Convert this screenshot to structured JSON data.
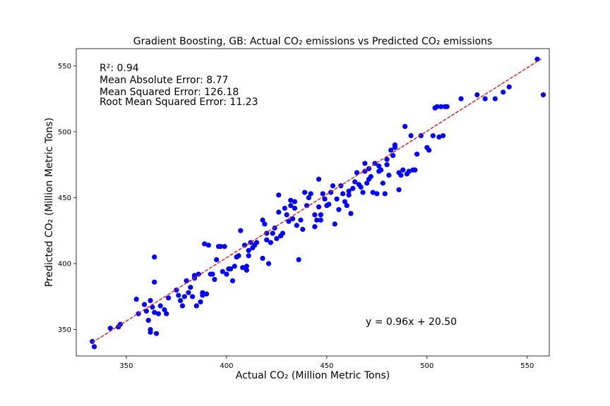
{
  "chart_data": {
    "type": "scatter",
    "title": "Gradient Boosting, GB: Actual CO₂ emissions vs Predicted CO₂ emissions",
    "xlabel": "Actual CO₂ (Million Metric Tons)",
    "ylabel": "Predicted CO₂ (Million Metric Tons)",
    "xlim": [
      325,
      561
    ],
    "ylim": [
      330,
      563
    ],
    "x_ticks": [
      350,
      400,
      450,
      500,
      550
    ],
    "y_ticks": [
      350,
      400,
      450,
      500,
      550
    ],
    "grid": false,
    "metrics": [
      "R²: 0.94",
      "Mean Absolute Error: 8.77",
      "Mean Squared Error: 126.18",
      "Root Mean Squared Error: 11.23"
    ],
    "fit_equation": "y = 0.96x + 20.50",
    "fit_line": {
      "slope": 0.96,
      "intercept": 20.5,
      "x_range": [
        333,
        557
      ],
      "color": "#d62728"
    },
    "point_color": "#0000ff",
    "series": [
      {
        "points": [
          [
            333,
            341
          ],
          [
            334,
            337
          ],
          [
            342,
            351
          ],
          [
            346,
            352
          ],
          [
            347,
            354
          ],
          [
            355,
            373
          ],
          [
            356,
            362
          ],
          [
            359,
            369
          ],
          [
            360,
            364
          ],
          [
            361,
            357
          ],
          [
            362,
            372
          ],
          [
            362,
            348
          ],
          [
            362,
            350
          ],
          [
            363,
            367
          ],
          [
            364,
            363
          ],
          [
            364,
            405
          ],
          [
            364,
            386
          ],
          [
            365,
            347
          ],
          [
            366,
            362
          ],
          [
            367,
            368
          ],
          [
            369,
            365
          ],
          [
            370,
            362
          ],
          [
            371,
            374
          ],
          [
            375,
            380
          ],
          [
            376,
            376
          ],
          [
            377,
            372
          ],
          [
            378,
            368
          ],
          [
            379,
            375
          ],
          [
            380,
            387
          ],
          [
            381,
            378
          ],
          [
            382,
            382
          ],
          [
            383,
            375
          ],
          [
            384,
            389
          ],
          [
            384,
            391
          ],
          [
            385,
            368
          ],
          [
            386,
            392
          ],
          [
            387,
            371
          ],
          [
            388,
            376
          ],
          [
            388,
            378
          ],
          [
            389,
            415
          ],
          [
            390,
            377
          ],
          [
            391,
            414
          ],
          [
            392,
            392
          ],
          [
            393,
            392
          ],
          [
            394,
            388
          ],
          [
            395,
            403
          ],
          [
            396,
            413
          ],
          [
            397,
            413
          ],
          [
            398,
            394
          ],
          [
            399,
            413
          ],
          [
            400,
            392
          ],
          [
            401,
            396
          ],
          [
            402,
            396
          ],
          [
            403,
            387
          ],
          [
            404,
            398
          ],
          [
            405,
            405
          ],
          [
            406,
            406
          ],
          [
            407,
            425
          ],
          [
            408,
            397
          ],
          [
            409,
            414
          ],
          [
            410,
            395
          ],
          [
            410,
            398
          ],
          [
            411,
            410
          ],
          [
            411,
            406
          ],
          [
            412,
            416
          ],
          [
            413,
            412
          ],
          [
            414,
            414
          ],
          [
            415,
            416
          ],
          [
            418,
            433
          ],
          [
            418,
            404
          ],
          [
            419,
            430
          ],
          [
            420,
            423
          ],
          [
            420,
            418
          ],
          [
            421,
            400
          ],
          [
            422,
            416
          ],
          [
            423,
            423
          ],
          [
            424,
            427
          ],
          [
            425,
            419
          ],
          [
            426,
            439
          ],
          [
            426,
            452
          ],
          [
            427,
            421
          ],
          [
            428,
            423
          ],
          [
            429,
            442
          ],
          [
            430,
            437
          ],
          [
            431,
            432
          ],
          [
            432,
            448
          ],
          [
            432,
            444
          ],
          [
            433,
            434
          ],
          [
            434,
            442
          ],
          [
            434,
            447
          ],
          [
            435,
            429
          ],
          [
            436,
            403
          ],
          [
            437,
            433
          ],
          [
            438,
            426
          ],
          [
            439,
            454
          ],
          [
            440,
            444
          ],
          [
            441,
            450
          ],
          [
            442,
            453
          ],
          [
            444,
            437
          ],
          [
            444,
            428
          ],
          [
            445,
            433
          ],
          [
            446,
            443
          ],
          [
            446,
            464
          ],
          [
            447,
            437
          ],
          [
            447,
            433
          ],
          [
            448,
            453
          ],
          [
            449,
            449
          ],
          [
            450,
            444
          ],
          [
            451,
            445
          ],
          [
            452,
            454
          ],
          [
            453,
            459
          ],
          [
            454,
            430
          ],
          [
            455,
            449
          ],
          [
            456,
            441
          ],
          [
            457,
            459
          ],
          [
            458,
            453
          ],
          [
            459,
            447
          ],
          [
            460,
            444
          ],
          [
            461,
            452
          ],
          [
            461,
            455
          ],
          [
            462,
            438
          ],
          [
            463,
            457
          ],
          [
            464,
            462
          ],
          [
            465,
            469
          ],
          [
            466,
            460
          ],
          [
            467,
            458
          ],
          [
            468,
            454
          ],
          [
            469,
            476
          ],
          [
            469,
            470
          ],
          [
            470,
            461
          ],
          [
            471,
            464
          ],
          [
            471,
            472
          ],
          [
            472,
            466
          ],
          [
            473,
            454
          ],
          [
            474,
            476
          ],
          [
            475,
            453
          ],
          [
            476,
            470
          ],
          [
            476,
            474
          ],
          [
            477,
            471
          ],
          [
            478,
            461
          ],
          [
            479,
            453
          ],
          [
            480,
            475
          ],
          [
            480,
            479
          ],
          [
            481,
            467
          ],
          [
            482,
            486
          ],
          [
            483,
            482
          ],
          [
            484,
            490
          ],
          [
            484,
            488
          ],
          [
            486,
            456
          ],
          [
            486,
            469
          ],
          [
            487,
            467
          ],
          [
            488,
            471
          ],
          [
            489,
            504
          ],
          [
            490,
            468
          ],
          [
            491,
            470
          ],
          [
            492,
            497
          ],
          [
            493,
            471
          ],
          [
            494,
            471
          ],
          [
            495,
            483
          ],
          [
            497,
            497
          ],
          [
            500,
            488
          ],
          [
            501,
            486
          ],
          [
            503,
            497
          ],
          [
            504,
            518
          ],
          [
            505,
            519
          ],
          [
            506,
            496
          ],
          [
            507,
            519
          ],
          [
            508,
            497
          ],
          [
            509,
            519
          ],
          [
            510,
            519
          ],
          [
            517,
            525
          ],
          [
            525,
            528
          ],
          [
            529,
            525
          ],
          [
            534,
            525
          ],
          [
            538,
            530
          ],
          [
            541,
            534
          ],
          [
            555,
            555
          ],
          [
            558,
            528
          ]
        ]
      }
    ]
  }
}
